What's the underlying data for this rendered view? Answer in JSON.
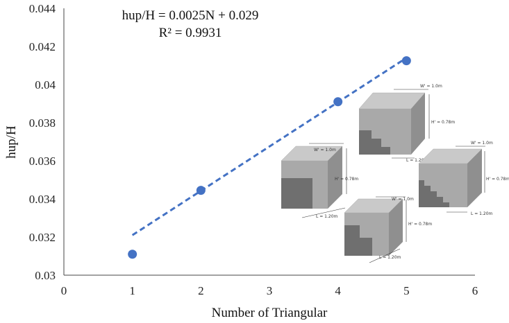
{
  "chart_data": {
    "type": "scatter",
    "xlabel": "Number of Triangular",
    "ylabel": "hup/H",
    "xlim": [
      0,
      6
    ],
    "ylim": [
      0.03,
      0.044
    ],
    "x_ticks": [
      "0",
      "1",
      "2",
      "3",
      "4",
      "5",
      "6"
    ],
    "y_ticks": [
      "0.03",
      "0.032",
      "0.034",
      "0.036",
      "0.038",
      "0.04",
      "0.042",
      "0.044"
    ],
    "series": [
      {
        "x": [
          1,
          2,
          4,
          5
        ],
        "y": [
          0.0311,
          0.03445,
          0.0391,
          0.04125
        ],
        "color": "#4472C4"
      }
    ],
    "trendline": {
      "slope": 0.0025,
      "intercept": 0.029,
      "x_range": [
        1,
        5
      ],
      "style": "dashed",
      "color": "#4472C4"
    },
    "annotations": {
      "equation": "hup/H = 0.0025N + 0.029",
      "r_squared": "R² = 0.9931"
    },
    "grid": false
  },
  "inset": {
    "w_label": "W' = 1.0m",
    "h_label": "H' = 0.78m",
    "l_label": "L = 1.20m"
  }
}
